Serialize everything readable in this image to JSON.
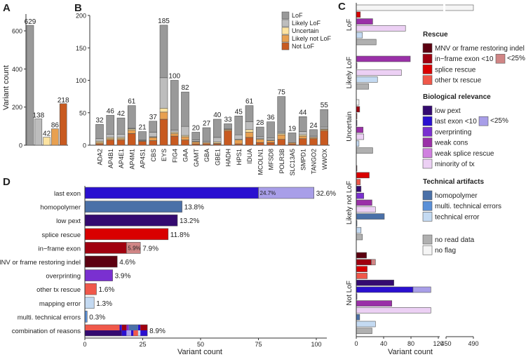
{
  "panel_labels": [
    "A",
    "B",
    "C",
    "D"
  ],
  "colors": {
    "mnv": "#5c0010",
    "inframe": "#a0000f",
    "inframe_lt25": "#d08585",
    "splice": "#d90000",
    "othertx": "#f0584a",
    "lowpext": "#340a70",
    "lastexon": "#2a10d0",
    "lastexon_lt25": "#a89ee8",
    "overprinting": "#7a30d0",
    "weakcons": "#9a30a8",
    "weaksplice": "#d080e0",
    "minority": "#ecd0f4",
    "homopolymer": "#4a70a8",
    "multi": "#5a90d8",
    "techerror": "#c4daf2",
    "noread": "#b0b0b0",
    "noflag": "#f5f5f5"
  },
  "chart_data": [
    {
      "panel": "A",
      "type": "bar",
      "categories": [
        "LoF",
        "Likely LoF",
        "Uncertain",
        "Likely not LoF",
        "Not LoF"
      ],
      "values": [
        629,
        138,
        42,
        86,
        218
      ],
      "colors": [
        "#999999",
        "#bdbdbd",
        "#fde3a0",
        "#e8a050",
        "#c85a20"
      ],
      "ylabel": "Variant count",
      "ylim": [
        0,
        680
      ],
      "yticks": [
        "0",
        "200",
        "400",
        "600"
      ]
    },
    {
      "panel": "B",
      "type": "bar",
      "stacked": true,
      "categories": [
        "ADA2",
        "AP4B1",
        "AP4E1",
        "AP4M1",
        "AP4S1",
        "CBS",
        "EYS",
        "FIG4",
        "GAA",
        "GAMT",
        "GBA",
        "GBE1",
        "HADH",
        "HPS1",
        "IDUA",
        "MCOLN1",
        "MFSD8",
        "POLR3B",
        "SLC13A5",
        "SMPD1",
        "TANGO2",
        "WWOX"
      ],
      "totals": [
        "32",
        "46",
        "42",
        "61",
        "21",
        "37",
        "185",
        "100",
        "82",
        "20",
        "27",
        "40",
        "33",
        "45",
        "61",
        "28",
        "36",
        "75",
        "19",
        "44",
        "24",
        "55"
      ],
      "series": [
        {
          "name": "Not LoF",
          "color": "#c85a20",
          "values": [
            2,
            8,
            8,
            18,
            6,
            7,
            40,
            14,
            8,
            2,
            2,
            2,
            22,
            2,
            12,
            4,
            4,
            9,
            2,
            10,
            10,
            22
          ]
        },
        {
          "name": "Likely not LoF",
          "color": "#e8a050",
          "values": [
            2,
            2,
            2,
            5,
            1,
            5,
            11,
            4,
            5,
            3,
            2,
            1,
            2,
            6,
            8,
            5,
            3,
            7,
            2,
            4,
            2,
            2
          ]
        },
        {
          "name": "Uncertain",
          "color": "#fde3a0",
          "values": [
            2,
            2,
            2,
            2,
            0,
            1,
            6,
            2,
            2,
            1,
            0,
            2,
            0,
            1,
            4,
            1,
            1,
            2,
            0,
            2,
            0,
            1
          ]
        },
        {
          "name": "Likely LoF",
          "color": "#bdbdbd",
          "values": [
            4,
            5,
            5,
            1,
            1,
            7,
            47,
            3,
            14,
            2,
            2,
            7,
            1,
            7,
            12,
            3,
            3,
            2,
            0,
            5,
            2,
            3
          ]
        },
        {
          "name": "LoF",
          "color": "#999999",
          "values": [
            22,
            29,
            25,
            35,
            13,
            17,
            81,
            77,
            53,
            12,
            21,
            28,
            8,
            29,
            25,
            15,
            25,
            55,
            15,
            23,
            10,
            27
          ]
        }
      ],
      "legend": [
        "LoF",
        "Likely LoF",
        "Uncertain",
        "Likely not LoF",
        "Not LoF"
      ],
      "ylim": [
        0,
        200
      ],
      "yticks": [
        "0",
        "50",
        "100",
        "150",
        "200"
      ]
    },
    {
      "panel": "C",
      "type": "bar",
      "orientation": "horizontal",
      "groups": [
        {
          "name": "LoF",
          "bars": [
            {
              "cat": "noflag",
              "value": 490
            },
            {
              "cat": "splice",
              "value": 6
            },
            {
              "cat": "weakcons",
              "value": 24
            },
            {
              "cat": "minority",
              "value": 72
            },
            {
              "cat": "techerror",
              "value": 9
            },
            {
              "cat": "noread",
              "value": 29
            }
          ]
        },
        {
          "name": "Likely LoF",
          "bars": [
            {
              "cat": "weakcons",
              "value": 79
            },
            {
              "cat": "weaksplice",
              "value": 1
            },
            {
              "cat": "minority",
              "value": 66
            },
            {
              "cat": "techerror",
              "value": 31
            },
            {
              "cat": "noread",
              "value": 18
            }
          ]
        },
        {
          "name": "Uncertain",
          "bars": [
            {
              "cat": "noflag",
              "value": 4
            },
            {
              "cat": "inframe",
              "value": 5
            },
            {
              "cat": "splice",
              "value": 1
            },
            {
              "cat": "lowpext",
              "value": 1
            },
            {
              "cat": "weakcons",
              "value": 10
            },
            {
              "cat": "minority",
              "value": 11
            },
            {
              "cat": "techerror",
              "value": 4
            },
            {
              "cat": "noread",
              "value": 24
            }
          ]
        },
        {
          "name": "Likely not LoF",
          "bars": [
            {
              "cat": "mnv",
              "value": 1
            },
            {
              "cat": "splice",
              "value": 19
            },
            {
              "cat": "othertx",
              "value": 6
            },
            {
              "cat": "lowpext",
              "value": 7
            },
            {
              "cat": "overprinting",
              "value": 11
            },
            {
              "cat": "weakcons",
              "value": 23
            },
            {
              "cat": "minority",
              "value": 28
            },
            {
              "cat": "homopolymer",
              "value": 41
            },
            {
              "cat": "multi",
              "value": 1
            },
            {
              "cat": "techerror",
              "value": 7
            },
            {
              "cat": "noread",
              "value": 9
            }
          ]
        },
        {
          "name": "Not LoF",
          "bars": [
            {
              "cat": "mnv",
              "value": 15
            },
            {
              "cat": "inframe",
              "value": 22,
              "lt25": 6
            },
            {
              "cat": "splice",
              "value": 16
            },
            {
              "cat": "othertx",
              "value": 16
            },
            {
              "cat": "lowpext",
              "value": 55
            },
            {
              "cat": "lastexon",
              "value": 83,
              "lt25": 26
            },
            {
              "cat": "overprinting",
              "value": 1
            },
            {
              "cat": "weakcons",
              "value": 52
            },
            {
              "cat": "minority",
              "value": 109
            },
            {
              "cat": "homopolymer",
              "value": 5
            },
            {
              "cat": "techerror",
              "value": 28
            },
            {
              "cat": "noread",
              "value": 23
            }
          ]
        }
      ],
      "legend": [
        {
          "title": "Rescue",
          "items": [
            {
              "cat": "mnv",
              "label": "MNV or frame restoring indel"
            },
            {
              "cat": "inframe",
              "label": "in−frame exon <10",
              "lt25": "inframe_lt25",
              "lt25_label": "<25%"
            },
            {
              "cat": "splice",
              "label": "splice rescue"
            },
            {
              "cat": "othertx",
              "label": "other tx rescue"
            }
          ]
        },
        {
          "title": "Biological relevance",
          "items": [
            {
              "cat": "lowpext",
              "label": "low pext"
            },
            {
              "cat": "lastexon",
              "label": "last exon <10",
              "lt25": "lastexon_lt25",
              "lt25_label": "<25%"
            },
            {
              "cat": "overprinting",
              "label": "overprinting"
            },
            {
              "cat": "weakcons",
              "label": "weak cons"
            },
            {
              "cat": "weaksplice",
              "label": "weak splice rescue"
            },
            {
              "cat": "minority",
              "label": "minority of tx"
            }
          ]
        },
        {
          "title": "Technical artifacts",
          "items": [
            {
              "cat": "homopolymer",
              "label": "homopolymer"
            },
            {
              "cat": "multi",
              "label": "multi. technical errors"
            },
            {
              "cat": "techerror",
              "label": "technical error"
            }
          ]
        },
        {
          "title": "",
          "items": [
            {
              "cat": "noread",
              "label": "no read data"
            },
            {
              "cat": "noflag",
              "label": "no flag"
            }
          ]
        }
      ],
      "xticks": [
        "0",
        "40",
        "80",
        "120",
        "450",
        "490"
      ],
      "xlabel": "Variant count",
      "axis_break": [
        125,
        445
      ]
    },
    {
      "panel": "D",
      "type": "bar",
      "orientation": "horizontal",
      "rows": [
        {
          "label": "last exon",
          "value": 75,
          "total": 99,
          "cat": "lastexon",
          "lt25": "lastexon_lt25",
          "pct": "32.6%",
          "inner_pct": "24.7%"
        },
        {
          "label": "homopolymer",
          "value": 42,
          "cat": "homopolymer",
          "pct": "13.8%"
        },
        {
          "label": "low pext",
          "value": 40,
          "cat": "lowpext",
          "pct": "13.2%"
        },
        {
          "label": "splice rescue",
          "value": 36,
          "cat": "splice",
          "pct": "11.8%"
        },
        {
          "label": "in−frame exon",
          "value": 18,
          "total": 24,
          "cat": "inframe",
          "lt25": "inframe_lt25",
          "pct": "7.9%",
          "inner_pct": "5.9%"
        },
        {
          "label": "MNV or frame restoring indel",
          "value": 14,
          "cat": "mnv",
          "pct": "4.6%"
        },
        {
          "label": "overprinting",
          "value": 12,
          "cat": "overprinting",
          "pct": "3.9%"
        },
        {
          "label": "other tx rescue",
          "value": 5,
          "cat": "othertx",
          "pct": "1.6%"
        },
        {
          "label": "mapping error",
          "value": 4,
          "cat": "techerror",
          "pct": "1.3%"
        },
        {
          "label": "multi. technical errors",
          "value": 1,
          "cat": "multi",
          "pct": "0.3%"
        },
        {
          "label": "combination of reasons",
          "value": 27,
          "cat": "combo",
          "pct": "8.9%",
          "top": [
            {
              "cat": "othertx",
              "v": 15
            },
            {
              "cat": "lastexon",
              "v": 1
            },
            {
              "cat": "inframe",
              "v": 2
            },
            {
              "cat": "overprinting",
              "v": 1
            },
            {
              "cat": "homopolymer",
              "v": 4
            },
            {
              "cat": "lastexon",
              "v": 1
            },
            {
              "cat": "inframe",
              "v": 3
            }
          ],
          "bottom": [
            {
              "cat": "lowpext",
              "v": 16
            },
            {
              "cat": "lastexon",
              "v": 2
            },
            {
              "cat": "lastexon_lt25",
              "v": 2
            },
            {
              "cat": "lastexon",
              "v": 1
            },
            {
              "cat": "othertx",
              "v": 2
            },
            {
              "cat": "techerror",
              "v": 1
            },
            {
              "cat": "lastexon",
              "v": 3
            }
          ]
        }
      ],
      "xticks": [
        "0",
        "25",
        "50",
        "75",
        "100"
      ],
      "xlim": [
        0,
        100
      ],
      "xlabel": "Variant count"
    }
  ]
}
